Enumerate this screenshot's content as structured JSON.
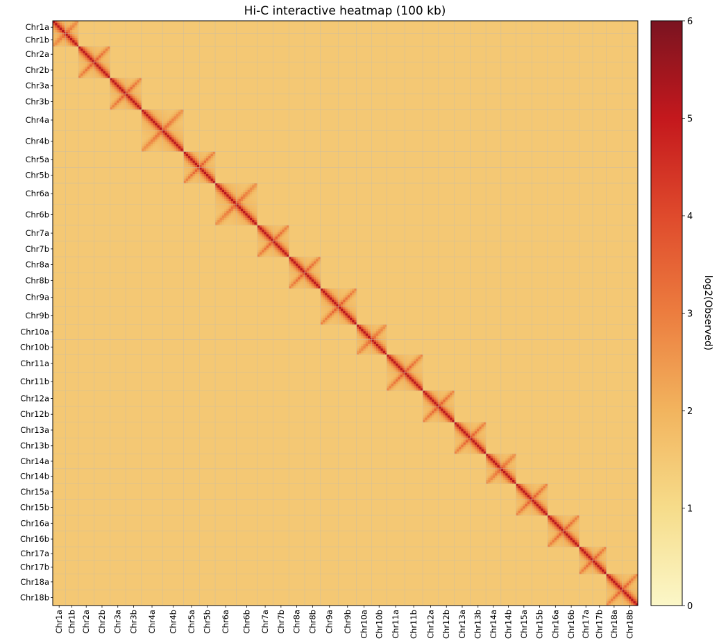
{
  "chart_data": {
    "type": "heatmap",
    "title": "Hi-C interactive heatmap (100 kb)",
    "matrix_semantics": "symmetric contact matrix; bins ordered by chromosome arm; strong cis blocks on diagonal with paired a/b arm blocks per chromosome",
    "categories": [
      "Chr1a",
      "Chr1b",
      "Chr2a",
      "Chr2b",
      "Chr3a",
      "Chr3b",
      "Chr4a",
      "Chr4b",
      "Chr5a",
      "Chr5b",
      "Chr6a",
      "Chr6b",
      "Chr7a",
      "Chr7b",
      "Chr8a",
      "Chr8b",
      "Chr9a",
      "Chr9b",
      "Chr10a",
      "Chr10b",
      "Chr11a",
      "Chr11b",
      "Chr12a",
      "Chr12b",
      "Chr13a",
      "Chr13b",
      "Chr14a",
      "Chr14b",
      "Chr15a",
      "Chr15b",
      "Chr16a",
      "Chr16b",
      "Chr17a",
      "Chr17b",
      "Chr18a",
      "Chr18b"
    ],
    "segment_lengths": [
      17,
      17,
      21,
      21,
      21,
      21,
      28,
      28,
      21,
      21,
      28,
      28,
      21,
      21,
      21,
      21,
      24,
      24,
      20,
      20,
      24,
      24,
      21,
      21,
      21,
      21,
      20,
      20,
      21,
      21,
      21,
      21,
      18,
      18,
      21,
      21
    ],
    "segment_length_units": "100 kb bins (approximate)",
    "value_range": [
      0,
      6
    ],
    "background_value": 1.5,
    "diagonal_peak_value": 5.2,
    "colorbar": {
      "label": "log2(Observed)",
      "ticks": [
        "0",
        "1",
        "2",
        "3",
        "4",
        "5",
        "6"
      ],
      "colors": [
        "#fbf7c8",
        "#f6dc8a",
        "#f2b45e",
        "#ec7d3f",
        "#df4a2c",
        "#c4181d",
        "#7a1420"
      ]
    },
    "grid": true,
    "colors": {
      "background_cell": "#f5d9a6",
      "grid_line": "#c8bca6",
      "frame": "#000000"
    }
  }
}
